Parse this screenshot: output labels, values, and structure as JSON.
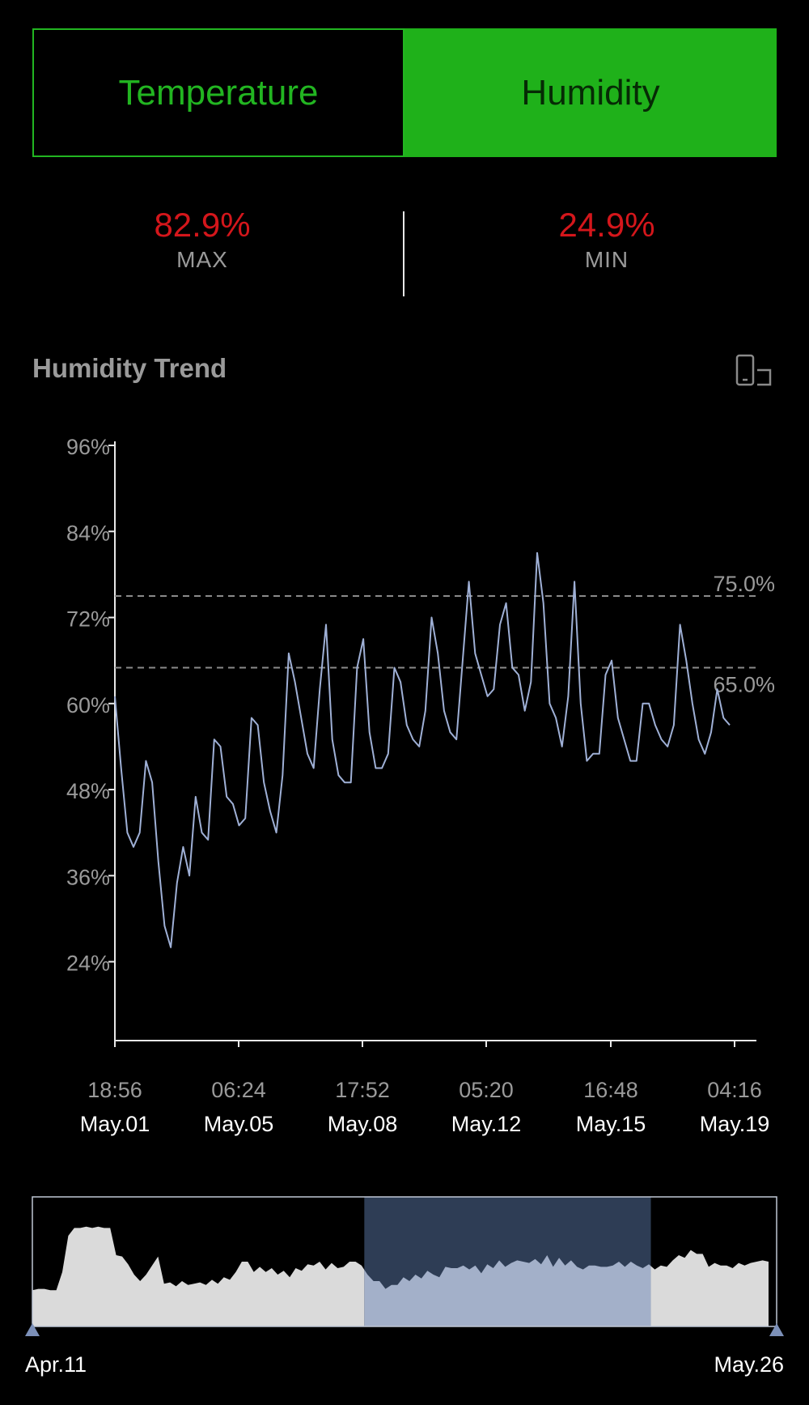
{
  "tabs": [
    {
      "label": "Temperature",
      "active": false
    },
    {
      "label": "Humidity",
      "active": true
    }
  ],
  "stats": {
    "max": {
      "value": "82.9%",
      "label": "MAX"
    },
    "min": {
      "value": "24.9%",
      "label": "MIN"
    }
  },
  "trend": {
    "title": "Humidity Trend",
    "rotate_icon": "rotate-screen-icon"
  },
  "colors": {
    "accent": "#1fb11a",
    "stat_value": "#d4161b",
    "line": "#9fb0d6",
    "navigator_fill": "#dadada",
    "navigator_selected": "#2e3d55",
    "navigator_selected_fill": "#a3b0c9"
  },
  "chart_data": {
    "type": "line",
    "ylabel": "",
    "xlabel": "",
    "ylim": [
      13,
      96
    ],
    "y_ticks": [
      "96%",
      "84%",
      "72%",
      "60%",
      "48%",
      "36%",
      "24%"
    ],
    "y_tick_values": [
      96,
      84,
      72,
      60,
      48,
      36,
      24
    ],
    "x_ticks": [
      {
        "time": "18:56",
        "date": "May.01"
      },
      {
        "time": "06:24",
        "date": "May.05"
      },
      {
        "time": "17:52",
        "date": "May.08"
      },
      {
        "time": "05:20",
        "date": "May.12"
      },
      {
        "time": "16:48",
        "date": "May.15"
      },
      {
        "time": "04:16",
        "date": "May.19"
      }
    ],
    "reference_lines": [
      {
        "value": 75.0,
        "label": "75.0%"
      },
      {
        "value": 65.0,
        "label": "65.0%"
      }
    ],
    "series": [
      {
        "values": [
          61,
          51,
          42,
          40,
          42,
          52,
          49,
          38,
          29,
          26,
          35,
          40,
          36,
          47,
          42,
          41,
          55,
          54,
          47,
          46,
          43,
          44,
          58,
          57,
          49,
          45,
          42,
          50,
          67,
          63,
          58,
          53,
          51,
          62,
          71,
          55,
          50,
          49,
          49,
          65,
          69,
          56,
          51,
          51,
          53,
          65,
          63,
          57,
          55,
          54,
          59,
          72,
          67,
          59,
          56,
          55,
          66,
          77,
          67,
          64,
          61,
          62,
          71,
          74,
          65,
          64,
          59,
          63,
          81,
          74,
          60,
          58,
          54,
          61,
          77,
          60,
          52,
          53,
          53,
          64,
          66,
          58,
          55,
          52,
          52,
          60,
          60,
          57,
          55,
          54,
          57,
          71,
          66,
          60,
          55,
          53,
          56,
          62,
          58,
          57
        ]
      }
    ],
    "navigator": {
      "start_label": "Apr.11",
      "end_label": "May.26",
      "selection_range": [
        0.446,
        0.831
      ],
      "values": [
        28,
        29,
        29,
        28,
        28,
        42,
        70,
        76,
        76,
        77,
        76,
        77,
        76,
        76,
        55,
        54,
        48,
        40,
        35,
        40,
        47,
        54,
        33,
        34,
        31,
        35,
        32,
        33,
        34,
        32,
        36,
        33,
        38,
        36,
        42,
        50,
        50,
        42,
        46,
        42,
        45,
        40,
        43,
        38,
        45,
        43,
        48,
        47,
        50,
        44,
        49,
        45,
        46,
        50,
        50,
        47,
        40,
        35,
        35,
        29,
        32,
        32,
        38,
        35,
        40,
        37,
        43,
        40,
        38,
        46,
        45,
        45,
        47,
        44,
        47,
        41,
        48,
        45,
        51,
        46,
        49,
        51,
        50,
        49,
        52,
        48,
        55,
        46,
        53,
        47,
        51,
        46,
        44,
        47,
        47,
        46,
        46,
        47,
        50,
        46,
        50,
        47,
        45,
        48,
        44,
        47,
        46,
        51,
        55,
        53,
        59,
        56,
        56,
        46,
        49,
        47,
        47,
        45,
        49,
        47,
        49,
        50,
        51,
        50
      ]
    }
  }
}
